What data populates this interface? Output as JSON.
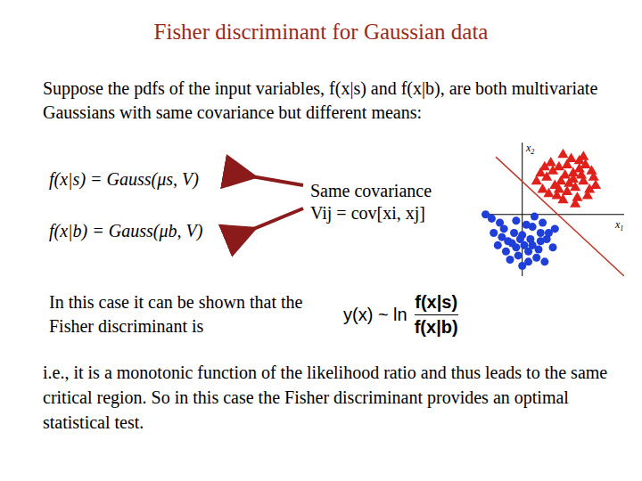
{
  "title": "Fisher discriminant for Gaussian data",
  "intro": "Suppose the pdfs of the input variables, f(x|s) and f(x|b), are both multivariate Gaussians with same covariance but different means:",
  "formulas": [
    "f(x|s) = Gauss(μs, V)",
    "f(x|b) = Gauss(μb, V)"
  ],
  "note": [
    "Same covariance",
    "Vij = cov[xi, xj]"
  ],
  "claim": "In this case it can be shown that the Fisher discriminant is",
  "equation": {
    "lhs": "y(x) ~ ln",
    "numerator": "f(x|s)",
    "denominator": "f(x|b)"
  },
  "conclusion": "i.e., it is a monotonic function of the likelihood ratio and thus leads to the same critical region.  So in this case the Fisher discriminant provides an optimal statistical test.",
  "chart_data": {
    "type": "scatter",
    "xlabel": "x1",
    "ylabel": "x2",
    "xlim": [
      -2,
      5
    ],
    "ylim": [
      -3,
      3.5
    ],
    "tick_labels": false,
    "boundary": {
      "color": "#c0392b",
      "points": [
        [
          -1.3,
          2.8
        ],
        [
          5,
          -3
        ]
      ]
    },
    "series": [
      {
        "color": "#e0201a",
        "marker": "triangle",
        "points": [
          [
            1.2,
            1.8
          ],
          [
            1.8,
            2.3
          ],
          [
            2.5,
            2.0
          ],
          [
            3.0,
            1.6
          ],
          [
            2.2,
            1.1
          ],
          [
            1.6,
            1.4
          ],
          [
            2.8,
            2.6
          ],
          [
            3.4,
            2.1
          ],
          [
            2.0,
            0.7
          ],
          [
            1.0,
            1.2
          ],
          [
            2.6,
            1.3
          ],
          [
            3.2,
            0.9
          ],
          [
            1.4,
            2.5
          ],
          [
            2.1,
            1.9
          ],
          [
            2.9,
            1.9
          ],
          [
            3.6,
            1.4
          ],
          [
            1.7,
            0.9
          ],
          [
            2.4,
            2.7
          ],
          [
            0.9,
            2.0
          ],
          [
            2.3,
            1.5
          ],
          [
            3.1,
            2.4
          ],
          [
            1.9,
            1.6
          ],
          [
            2.7,
            0.8
          ],
          [
            3.5,
            1.8
          ],
          [
            1.3,
            1.0
          ],
          [
            2.0,
            2.9
          ],
          [
            2.5,
            1.7
          ],
          [
            1.5,
            2.1
          ],
          [
            3.3,
            1.2
          ],
          [
            2.8,
            2.2
          ],
          [
            0.7,
            1.6
          ],
          [
            2.2,
            2.4
          ],
          [
            1.8,
            1.2
          ],
          [
            3.0,
            2.8
          ],
          [
            2.6,
            0.5
          ],
          [
            1.1,
            2.3
          ]
        ]
      },
      {
        "color": "#1f3fd8",
        "marker": "circle",
        "points": [
          [
            0.0,
            -1.0
          ],
          [
            -0.5,
            -1.4
          ],
          [
            0.5,
            -0.6
          ],
          [
            0.9,
            -1.3
          ],
          [
            -0.9,
            -0.7
          ],
          [
            0.3,
            -1.8
          ],
          [
            -0.3,
            -0.3
          ],
          [
            1.3,
            -0.9
          ],
          [
            -1.2,
            -1.5
          ],
          [
            0.7,
            -2.1
          ],
          [
            -0.6,
            -2.2
          ],
          [
            0.1,
            -1.5
          ],
          [
            1.0,
            -0.4
          ],
          [
            -1.0,
            -1.1
          ],
          [
            0.4,
            -1.2
          ],
          [
            -0.2,
            -2.0
          ],
          [
            1.5,
            -1.6
          ],
          [
            -1.5,
            -0.2
          ],
          [
            0.6,
            -0.1
          ],
          [
            -0.8,
            -1.8
          ],
          [
            0.2,
            -0.5
          ],
          [
            1.1,
            -2.3
          ],
          [
            -0.4,
            -0.9
          ],
          [
            0.8,
            -1.7
          ],
          [
            -1.8,
            0.0
          ],
          [
            0.0,
            -2.5
          ],
          [
            1.6,
            -0.7
          ],
          [
            -1.1,
            -0.4
          ],
          [
            0.5,
            -1.5
          ],
          [
            -0.1,
            -1.2
          ],
          [
            1.2,
            -1.2
          ],
          [
            -0.7,
            -1.3
          ],
          [
            0.3,
            -2.3
          ],
          [
            -1.4,
            -0.9
          ],
          [
            0.9,
            -0.9
          ],
          [
            -0.3,
            -1.6
          ]
        ]
      }
    ]
  }
}
